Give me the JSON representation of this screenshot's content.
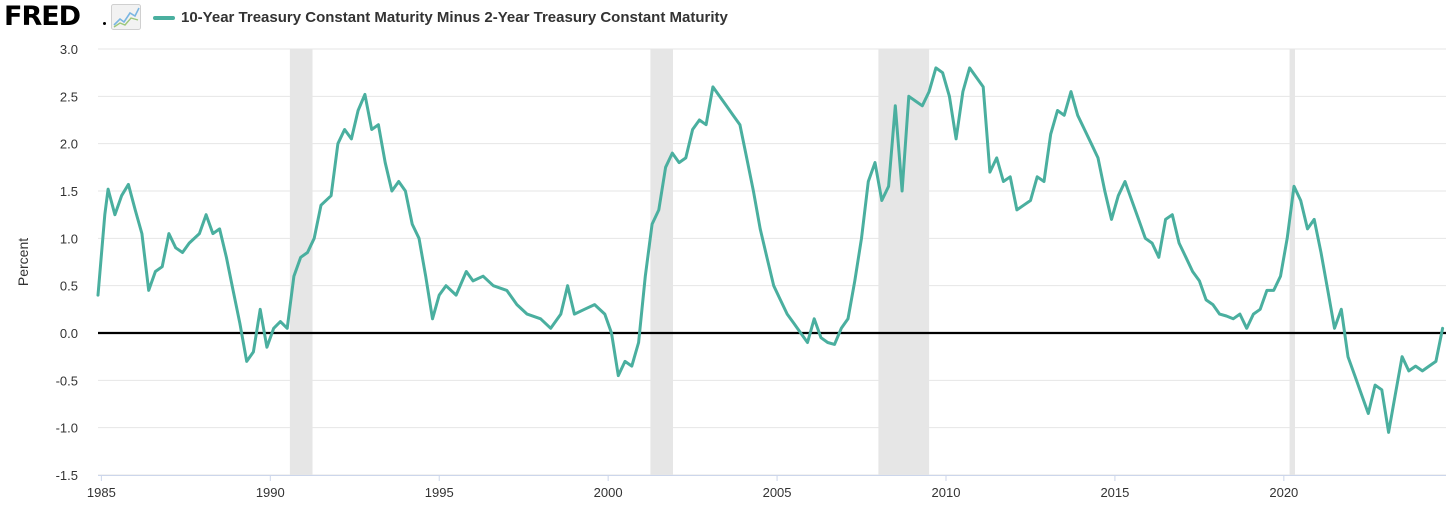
{
  "header": {
    "logo_text": "FRED",
    "legend_label": "10-Year Treasury Constant Maturity Minus 2-Year Treasury Constant Maturity"
  },
  "colors": {
    "series": "#4aaf9f",
    "recession": "#e6e6e6",
    "grid": "#e6e6e6",
    "zero_line": "#000000",
    "axis": "#ccd6eb"
  },
  "icons": {
    "graph": "line-graph-icon"
  },
  "chart_data": {
    "type": "line",
    "ylabel": "Percent",
    "xlim": [
      1984.9,
      2024.8
    ],
    "ylim": [
      -1.5,
      3.0
    ],
    "x_ticks": [
      1985,
      1990,
      1995,
      2000,
      2005,
      2010,
      2015,
      2020
    ],
    "x_tick_labels": [
      "1985",
      "1990",
      "1995",
      "2000",
      "2005",
      "2010",
      "2015",
      "2020"
    ],
    "y_ticks": [
      3.0,
      2.5,
      2.0,
      1.5,
      1.0,
      0.5,
      0.0,
      -0.5,
      -1.0,
      -1.5
    ],
    "y_tick_labels": [
      "3.0",
      "2.5",
      "2.0",
      "1.5",
      "1.0",
      "0.5",
      "0.0",
      "-0.5",
      "-1.0",
      "-1.5"
    ],
    "grid": true,
    "reference_line": 0.0,
    "recessions": [
      [
        1990.58,
        1991.25
      ],
      [
        2001.25,
        2001.92
      ],
      [
        2008.0,
        2009.5
      ],
      [
        2020.17,
        2020.33
      ]
    ],
    "series": [
      {
        "values_x": [
          1984.9,
          1985.1,
          1985.2,
          1985.4,
          1985.6,
          1985.8,
          1986.0,
          1986.2,
          1986.4,
          1986.6,
          1986.8,
          1987.0,
          1987.2,
          1987.4,
          1987.6,
          1987.9,
          1988.1,
          1988.3,
          1988.5,
          1988.7,
          1988.9,
          1989.1,
          1989.3,
          1989.5,
          1989.7,
          1989.9,
          1990.1,
          1990.3,
          1990.5,
          1990.7,
          1990.9,
          1991.1,
          1991.3,
          1991.5,
          1991.8,
          1992.0,
          1992.2,
          1992.4,
          1992.6,
          1992.8,
          1993.0,
          1993.2,
          1993.4,
          1993.6,
          1993.8,
          1994.0,
          1994.2,
          1994.4,
          1994.6,
          1994.8,
          1995.0,
          1995.2,
          1995.5,
          1995.8,
          1996.0,
          1996.3,
          1996.6,
          1997.0,
          1997.3,
          1997.6,
          1998.0,
          1998.3,
          1998.6,
          1998.8,
          1999.0,
          1999.3,
          1999.6,
          1999.9,
          2000.1,
          2000.3,
          2000.5,
          2000.7,
          2000.9,
          2001.1,
          2001.3,
          2001.5,
          2001.7,
          2001.9,
          2002.1,
          2002.3,
          2002.5,
          2002.7,
          2002.9,
          2003.1,
          2003.3,
          2003.5,
          2003.7,
          2003.9,
          2004.1,
          2004.3,
          2004.5,
          2004.7,
          2004.9,
          2005.1,
          2005.3,
          2005.5,
          2005.7,
          2005.9,
          2006.1,
          2006.3,
          2006.5,
          2006.7,
          2006.9,
          2007.1,
          2007.3,
          2007.5,
          2007.7,
          2007.9,
          2008.1,
          2008.3,
          2008.5,
          2008.7,
          2008.9,
          2009.1,
          2009.3,
          2009.5,
          2009.7,
          2009.9,
          2010.1,
          2010.3,
          2010.5,
          2010.7,
          2010.9,
          2011.1,
          2011.3,
          2011.5,
          2011.7,
          2011.9,
          2012.1,
          2012.3,
          2012.5,
          2012.7,
          2012.9,
          2013.1,
          2013.3,
          2013.5,
          2013.7,
          2013.9,
          2014.1,
          2014.3,
          2014.5,
          2014.7,
          2014.9,
          2015.1,
          2015.3,
          2015.5,
          2015.7,
          2015.9,
          2016.1,
          2016.3,
          2016.5,
          2016.7,
          2016.9,
          2017.1,
          2017.3,
          2017.5,
          2017.7,
          2017.9,
          2018.1,
          2018.3,
          2018.5,
          2018.7,
          2018.9,
          2019.1,
          2019.3,
          2019.5,
          2019.7,
          2019.9,
          2020.1,
          2020.3,
          2020.5,
          2020.7,
          2020.9,
          2021.1,
          2021.3,
          2021.5,
          2021.7,
          2021.9,
          2022.1,
          2022.3,
          2022.5,
          2022.7,
          2022.9,
          2023.1,
          2023.3,
          2023.5,
          2023.7,
          2023.9,
          2024.1,
          2024.3,
          2024.5,
          2024.7
        ],
        "values_y": [
          0.4,
          1.25,
          1.52,
          1.25,
          1.45,
          1.57,
          1.3,
          1.05,
          0.45,
          0.65,
          0.7,
          1.05,
          0.9,
          0.85,
          0.95,
          1.05,
          1.25,
          1.05,
          1.1,
          0.8,
          0.45,
          0.1,
          -0.3,
          -0.2,
          0.25,
          -0.15,
          0.05,
          0.12,
          0.05,
          0.6,
          0.8,
          0.85,
          1.0,
          1.35,
          1.45,
          2.0,
          2.15,
          2.05,
          2.35,
          2.52,
          2.15,
          2.2,
          1.8,
          1.5,
          1.6,
          1.5,
          1.15,
          1.0,
          0.6,
          0.15,
          0.4,
          0.5,
          0.4,
          0.65,
          0.55,
          0.6,
          0.5,
          0.45,
          0.3,
          0.2,
          0.15,
          0.05,
          0.2,
          0.5,
          0.2,
          0.25,
          0.3,
          0.2,
          0.0,
          -0.45,
          -0.3,
          -0.35,
          -0.1,
          0.6,
          1.15,
          1.3,
          1.75,
          1.9,
          1.8,
          1.85,
          2.15,
          2.25,
          2.2,
          2.6,
          2.5,
          2.4,
          2.3,
          2.2,
          1.85,
          1.5,
          1.1,
          0.8,
          0.5,
          0.35,
          0.2,
          0.1,
          0.0,
          -0.1,
          0.15,
          -0.05,
          -0.1,
          -0.12,
          0.05,
          0.15,
          0.55,
          1.0,
          1.6,
          1.8,
          1.4,
          1.55,
          2.4,
          1.5,
          2.5,
          2.45,
          2.4,
          2.55,
          2.8,
          2.75,
          2.5,
          2.05,
          2.55,
          2.8,
          2.7,
          2.6,
          1.7,
          1.85,
          1.6,
          1.65,
          1.3,
          1.35,
          1.4,
          1.65,
          1.6,
          2.1,
          2.35,
          2.3,
          2.55,
          2.3,
          2.15,
          2.0,
          1.85,
          1.5,
          1.2,
          1.45,
          1.6,
          1.4,
          1.2,
          1.0,
          0.95,
          0.8,
          1.2,
          1.25,
          0.95,
          0.8,
          0.65,
          0.55,
          0.35,
          0.3,
          0.2,
          0.18,
          0.15,
          0.2,
          0.05,
          0.2,
          0.25,
          0.45,
          0.45,
          0.6,
          1.0,
          1.55,
          1.4,
          1.1,
          1.2,
          0.85,
          0.45,
          0.05,
          0.25,
          -0.25,
          -0.45,
          -0.65,
          -0.85,
          -0.55,
          -0.6,
          -1.05,
          -0.65,
          -0.25,
          -0.4,
          -0.35,
          -0.4,
          -0.35,
          -0.3,
          0.05
        ],
        "color": "#4aaf9f"
      }
    ]
  }
}
